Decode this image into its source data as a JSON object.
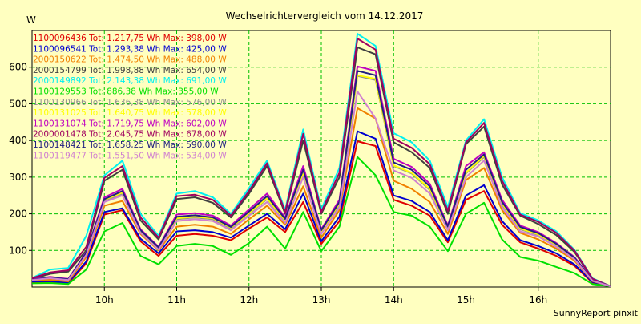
{
  "chart_data": {
    "type": "line",
    "title": "Wechselrichtervergleich vom 14.12.2017",
    "ylabel": "W",
    "xlabel": "",
    "footer": "SunnyReport pinxit",
    "ylim": [
      0,
      700
    ],
    "yticks": [
      100,
      200,
      300,
      400,
      500,
      600
    ],
    "xlim": [
      9.0,
      17.0
    ],
    "xticks": [
      {
        "value": 10,
        "label": "10h"
      },
      {
        "value": 11,
        "label": "11h"
      },
      {
        "value": 12,
        "label": "12h"
      },
      {
        "value": 13,
        "label": "13h"
      },
      {
        "value": 14,
        "label": "14h"
      },
      {
        "value": 15,
        "label": "15h"
      },
      {
        "value": 16,
        "label": "16h"
      }
    ],
    "grid": true,
    "legend_position": "top-left",
    "x": [
      9.0,
      9.25,
      9.5,
      9.75,
      10.0,
      10.25,
      10.5,
      10.75,
      11.0,
      11.25,
      11.5,
      11.75,
      12.0,
      12.25,
      12.5,
      12.75,
      13.0,
      13.25,
      13.5,
      13.75,
      14.0,
      14.25,
      14.5,
      14.75,
      15.0,
      15.25,
      15.5,
      15.75,
      16.0,
      16.25,
      16.5,
      16.75,
      17.0
    ],
    "series": [
      {
        "name": "1100096436 Tot: 1.217,75 Wh Max: 398,00 W",
        "color": "#e00000",
        "values": [
          12,
          14,
          10,
          65,
          198,
          210,
          125,
          85,
          140,
          145,
          140,
          128,
          160,
          190,
          150,
          232,
          118,
          180,
          398,
          385,
          238,
          222,
          195,
          122,
          238,
          262,
          170,
          122,
          105,
          85,
          58,
          12,
          2
        ]
      },
      {
        "name": "1100096541 Tot: 1.293,38 Wh Max: 425,00 W",
        "color": "#0000d0",
        "values": [
          15,
          16,
          12,
          70,
          205,
          215,
          132,
          92,
          152,
          155,
          150,
          135,
          168,
          200,
          158,
          255,
          125,
          192,
          425,
          405,
          250,
          235,
          205,
          128,
          250,
          278,
          180,
          128,
          112,
          92,
          62,
          14,
          2
        ]
      },
      {
        "name": "2000150622 Tot: 1.474,50 Wh Max: 488,00 W",
        "color": "#f08000",
        "values": [
          18,
          20,
          15,
          82,
          222,
          235,
          145,
          100,
          165,
          170,
          165,
          145,
          185,
          222,
          170,
          275,
          135,
          210,
          488,
          460,
          290,
          268,
          232,
          145,
          292,
          325,
          210,
          148,
          130,
          105,
          72,
          16,
          2
        ]
      },
      {
        "name": "2000154799 Tot: 1.998,88 Wh Max: 654,00 W",
        "color": "#404040",
        "values": [
          22,
          36,
          42,
          100,
          290,
          320,
          182,
          130,
          240,
          245,
          230,
          190,
          255,
          330,
          200,
          400,
          200,
          300,
          654,
          635,
          395,
          368,
          325,
          200,
          390,
          438,
          280,
          195,
          172,
          142,
          96,
          22,
          2
        ]
      },
      {
        "name": "2000149892 Tot: 2.143,38 Wh Max: 691,00 W",
        "color": "#00f0f0",
        "values": [
          25,
          48,
          52,
          140,
          305,
          345,
          200,
          140,
          255,
          262,
          245,
          200,
          270,
          345,
          210,
          430,
          212,
          325,
          691,
          658,
          420,
          395,
          345,
          218,
          400,
          458,
          300,
          202,
          182,
          152,
          102,
          24,
          2
        ]
      },
      {
        "name": "1100129553 Tot: 886,38 Wh Max: 355,00 W",
        "color": "#00e000",
        "values": [
          10,
          11,
          8,
          48,
          152,
          175,
          85,
          62,
          112,
          118,
          112,
          88,
          120,
          165,
          105,
          205,
          98,
          165,
          355,
          305,
          205,
          195,
          165,
          98,
          200,
          230,
          130,
          82,
          72,
          55,
          38,
          8,
          2
        ]
      },
      {
        "name": "1100130966 Tot: 1.636,38 Wh Max: 576,00 W",
        "color": "#909090",
        "values": [
          20,
          25,
          20,
          90,
          235,
          255,
          150,
          105,
          185,
          190,
          185,
          160,
          200,
          240,
          180,
          310,
          150,
          225,
          576,
          565,
          330,
          310,
          265,
          160,
          310,
          355,
          225,
          158,
          142,
          115,
          78,
          18,
          2
        ]
      },
      {
        "name": "1100131025 Tot: 1.640,75 Wh Max: 578,00 W",
        "color": "#ffff00",
        "values": [
          20,
          26,
          21,
          92,
          238,
          258,
          152,
          106,
          188,
          192,
          188,
          162,
          202,
          242,
          182,
          312,
          152,
          228,
          578,
          568,
          332,
          312,
          268,
          162,
          312,
          358,
          228,
          160,
          144,
          116,
          79,
          18,
          2
        ]
      },
      {
        "name": "1100131074 Tot: 1.719,75 Wh Max: 602,00 W",
        "color": "#c000c0",
        "values": [
          21,
          28,
          22,
          95,
          245,
          268,
          158,
          110,
          198,
          202,
          195,
          168,
          212,
          255,
          190,
          330,
          158,
          238,
          602,
          590,
          350,
          328,
          282,
          168,
          330,
          368,
          238,
          168,
          150,
          120,
          82,
          19,
          2
        ]
      },
      {
        "name": "2000001478 Tot: 2.045,75 Wh Max: 678,00 W",
        "color": "#a00060",
        "values": [
          24,
          40,
          46,
          110,
          298,
          330,
          190,
          135,
          248,
          252,
          238,
          195,
          262,
          338,
          205,
          418,
          205,
          312,
          678,
          648,
          405,
          380,
          335,
          208,
          395,
          448,
          290,
          198,
          178,
          148,
          100,
          23,
          2
        ]
      },
      {
        "name": "1100148421 Tot: 1.658,25 Wh Max: 590,00 W",
        "color": "#202080",
        "values": [
          20,
          26,
          21,
          93,
          240,
          262,
          155,
          108,
          192,
          196,
          190,
          164,
          206,
          248,
          186,
          320,
          155,
          232,
          590,
          578,
          340,
          320,
          275,
          165,
          320,
          362,
          232,
          164,
          147,
          118,
          80,
          18,
          2
        ]
      },
      {
        "name": "1100119477 Tot: 1.551,50 Wh Max: 534,00 W",
        "color": "#d080d0",
        "values": [
          19,
          24,
          19,
          88,
          232,
          250,
          148,
          102,
          180,
          185,
          180,
          155,
          195,
          232,
          175,
          300,
          145,
          218,
          534,
          460,
          318,
          298,
          255,
          155,
          300,
          345,
          218,
          152,
          138,
          110,
          76,
          17,
          2
        ]
      }
    ]
  }
}
